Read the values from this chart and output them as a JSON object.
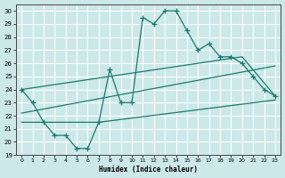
{
  "xlabel": "Humidex (Indice chaleur)",
  "bg_color": "#cce8e8",
  "line_color": "#1a7a6e",
  "grid_color": "#ffffff",
  "xlim": [
    -0.5,
    23.5
  ],
  "ylim": [
    19,
    30.5
  ],
  "xticks": [
    0,
    1,
    2,
    3,
    4,
    5,
    6,
    7,
    8,
    9,
    10,
    11,
    12,
    13,
    14,
    15,
    16,
    17,
    18,
    19,
    20,
    21,
    22,
    23
  ],
  "yticks": [
    19,
    20,
    21,
    22,
    23,
    24,
    25,
    26,
    27,
    28,
    29,
    30
  ],
  "line1_x": [
    0,
    1,
    2,
    3,
    4,
    5,
    6,
    7,
    8,
    9,
    10,
    11,
    12,
    13,
    14,
    15,
    16,
    17,
    18,
    19,
    20,
    21,
    22,
    23
  ],
  "line1_y": [
    24,
    23,
    21.5,
    20.5,
    20.5,
    19.5,
    19.5,
    21.5,
    25.5,
    23.0,
    23.0,
    29.5,
    29.0,
    30.0,
    30.0,
    28.5,
    27.0,
    27.5,
    26.5,
    26.5,
    26.0,
    25.0,
    24.0,
    23.5
  ],
  "line2_x": [
    0,
    7,
    23
  ],
  "line2_y": [
    21.5,
    21.5,
    23.2
  ],
  "line3_x": [
    0,
    23
  ],
  "line3_y": [
    22.2,
    25.8
  ],
  "line4_x": [
    0,
    20,
    23
  ],
  "line4_y": [
    24.0,
    26.5,
    23.5
  ]
}
